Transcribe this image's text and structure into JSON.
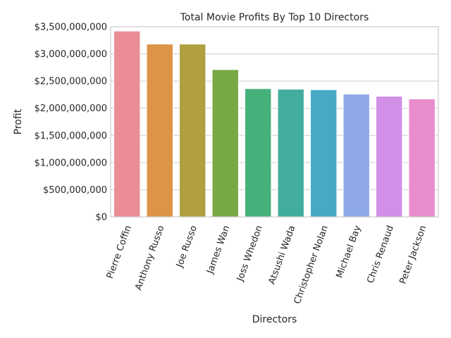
{
  "chart_data": {
    "type": "bar",
    "title": "Total Movie Profits By Top 10 Directors",
    "xlabel": "Directors",
    "ylabel": "Profit",
    "categories": [
      "Pierre Coffin",
      "Anthony Russo",
      "Joe Russo",
      "James Wan",
      "Joss Whedon",
      "Atsushi Wada",
      "Christopher Nolan",
      "Michael Bay",
      "Chris Renaud",
      "Peter Jackson"
    ],
    "values": [
      3420000000,
      3180000000,
      3180000000,
      2710000000,
      2360000000,
      2350000000,
      2340000000,
      2260000000,
      2220000000,
      2170000000
    ],
    "colors": [
      "#ea8d96",
      "#dc9446",
      "#b0a040",
      "#76a843",
      "#46b07a",
      "#43ad9d",
      "#47a9c4",
      "#8fa9e8",
      "#d18fe8",
      "#e98dcc"
    ],
    "ylim": [
      0,
      3500000000
    ],
    "y_ticks": [
      0,
      500000000,
      1000000000,
      1500000000,
      2000000000,
      2500000000,
      3000000000,
      3500000000
    ],
    "y_tick_labels": [
      "$0",
      "$500,000,000",
      "$1,000,000,000",
      "$1,500,000,000",
      "$2,000,000,000",
      "$2,500,000,000",
      "$3,000,000,000",
      "$3,500,000,000"
    ],
    "grid": true,
    "style": "seaborn-whitegrid"
  }
}
